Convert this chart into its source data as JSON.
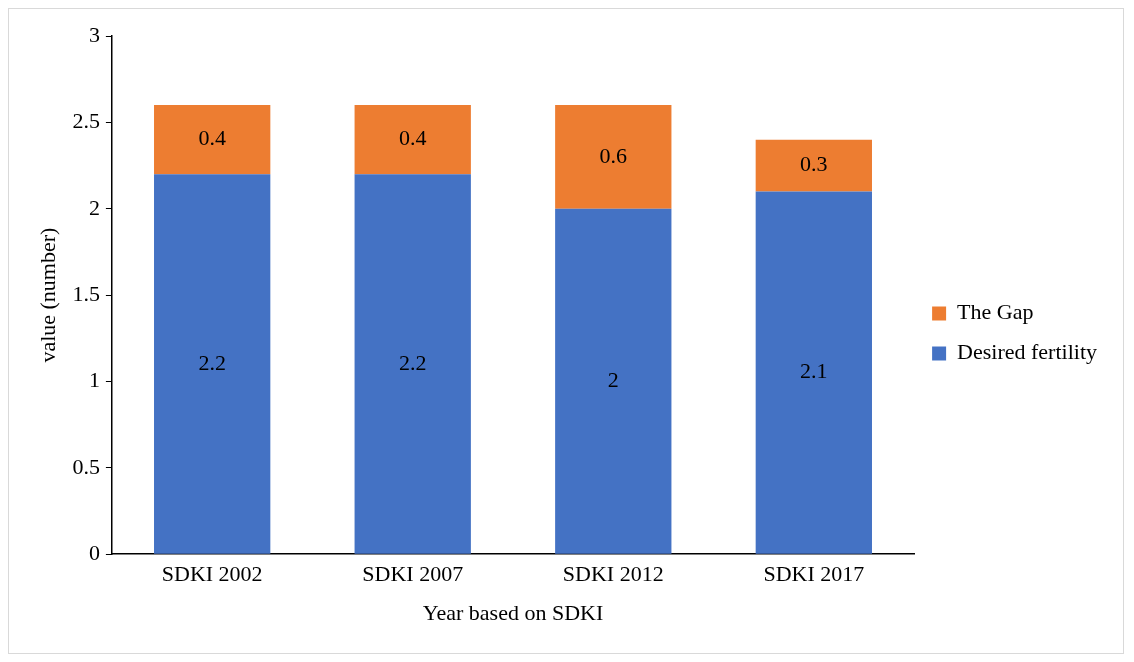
{
  "chart_data": {
    "type": "bar",
    "stacked": true,
    "xlabel": "Year based on SDKI",
    "ylabel": "value (number)",
    "categories": [
      "SDKI 2002",
      "SDKI 2007",
      "SDKI 2012",
      "SDKI 2017"
    ],
    "series": [
      {
        "name": "Desired fertility",
        "color": "#4472c4",
        "values": [
          2.2,
          2.2,
          2,
          2.1
        ]
      },
      {
        "name": "The Gap",
        "color": "#ed7d31",
        "values": [
          0.4,
          0.4,
          0.6,
          0.3
        ]
      }
    ],
    "ylim": [
      0,
      3
    ],
    "yticks": [
      0,
      0.5,
      1,
      1.5,
      2,
      2.5,
      3
    ],
    "grid": false,
    "legend": "right",
    "data_labels": true
  }
}
